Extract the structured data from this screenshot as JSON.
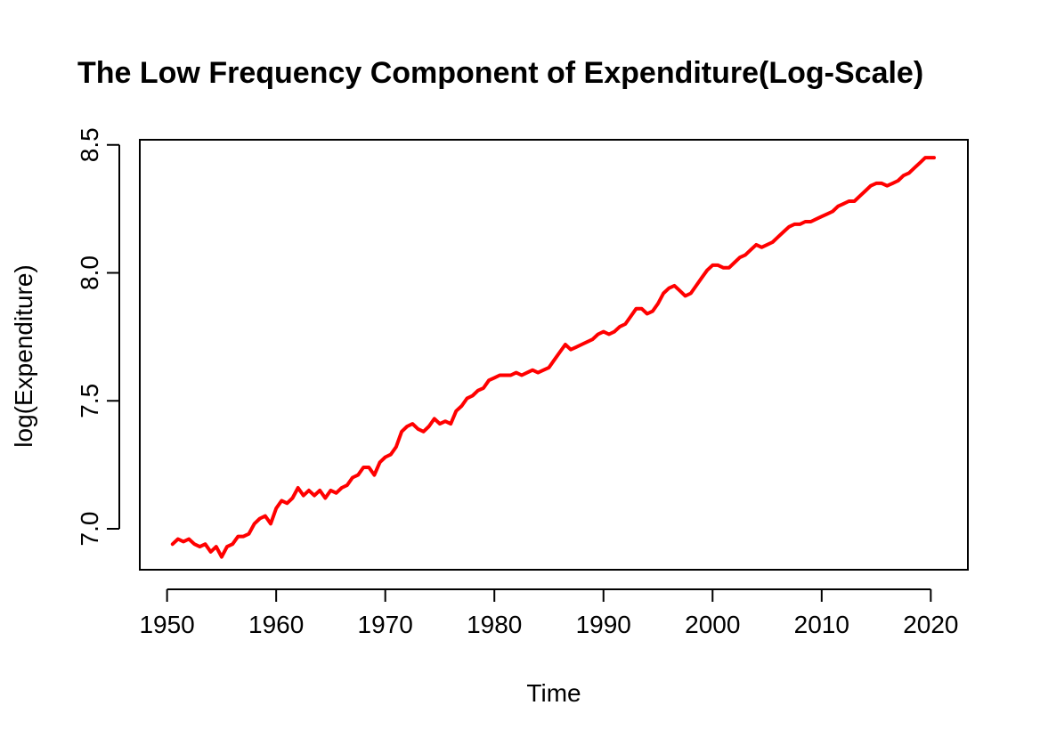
{
  "chart_data": {
    "type": "line",
    "title": "The Low Frequency Component of Expenditure(Log-Scale)",
    "xlabel": "Time",
    "ylabel": "log(Expenditure)",
    "xlim": [
      1947.5,
      2023.4
    ],
    "ylim": [
      6.84,
      8.52
    ],
    "x_ticks": [
      1950,
      1960,
      1970,
      1980,
      1990,
      2000,
      2010,
      2020
    ],
    "y_ticks": [
      7.0,
      7.5,
      8.0,
      8.5
    ],
    "x_tick_labels": [
      "1950",
      "1960",
      "1970",
      "1980",
      "1990",
      "2000",
      "2010",
      "2020"
    ],
    "y_tick_labels": [
      "7.0",
      "7.5",
      "8.0",
      "8.5"
    ],
    "grid": false,
    "legend": "none",
    "series": [
      {
        "color": "#ff0000",
        "x": [
          1950.5,
          1951.0,
          1951.5,
          1952.0,
          1952.5,
          1953.0,
          1953.5,
          1954.0,
          1954.5,
          1955.0,
          1955.5,
          1956.0,
          1956.5,
          1957.0,
          1957.5,
          1958.0,
          1958.5,
          1959.0,
          1959.5,
          1960.0,
          1960.5,
          1961.0,
          1961.5,
          1962.0,
          1962.5,
          1963.0,
          1963.5,
          1964.0,
          1964.5,
          1965.0,
          1965.5,
          1966.0,
          1966.5,
          1967.0,
          1967.5,
          1968.0,
          1968.5,
          1969.0,
          1969.5,
          1970.0,
          1970.5,
          1971.0,
          1971.5,
          1972.0,
          1972.5,
          1973.0,
          1973.5,
          1974.0,
          1974.5,
          1975.0,
          1975.5,
          1976.0,
          1976.5,
          1977.0,
          1977.5,
          1978.0,
          1978.5,
          1979.0,
          1979.5,
          1980.0,
          1980.5,
          1981.0,
          1981.5,
          1982.0,
          1982.5,
          1983.0,
          1983.5,
          1984.0,
          1984.5,
          1985.0,
          1985.5,
          1986.0,
          1986.5,
          1987.0,
          1987.5,
          1988.0,
          1988.5,
          1989.0,
          1989.5,
          1990.0,
          1990.5,
          1991.0,
          1991.5,
          1992.0,
          1992.5,
          1993.0,
          1993.5,
          1994.0,
          1994.5,
          1995.0,
          1995.5,
          1996.0,
          1996.5,
          1997.0,
          1997.5,
          1998.0,
          1998.5,
          1999.0,
          1999.5,
          2000.0,
          2000.5,
          2001.0,
          2001.5,
          2002.0,
          2002.5,
          2003.0,
          2003.5,
          2004.0,
          2004.5,
          2005.0,
          2005.5,
          2006.0,
          2006.5,
          2007.0,
          2007.5,
          2008.0,
          2008.5,
          2009.0,
          2009.5,
          2010.0,
          2010.5,
          2011.0,
          2011.5,
          2012.0,
          2012.5,
          2013.0,
          2013.5,
          2014.0,
          2014.5,
          2015.0,
          2015.5,
          2016.0,
          2016.5,
          2017.0,
          2017.5,
          2018.0,
          2018.5,
          2019.0,
          2019.5,
          2020.0,
          2020.3
        ],
        "values": [
          6.94,
          6.96,
          6.95,
          6.96,
          6.94,
          6.93,
          6.94,
          6.91,
          6.93,
          6.89,
          6.93,
          6.94,
          6.97,
          6.97,
          6.98,
          7.02,
          7.04,
          7.05,
          7.02,
          7.08,
          7.11,
          7.1,
          7.12,
          7.16,
          7.13,
          7.15,
          7.13,
          7.15,
          7.12,
          7.15,
          7.14,
          7.16,
          7.17,
          7.2,
          7.21,
          7.24,
          7.24,
          7.21,
          7.26,
          7.28,
          7.29,
          7.32,
          7.38,
          7.4,
          7.41,
          7.39,
          7.38,
          7.4,
          7.43,
          7.41,
          7.42,
          7.41,
          7.46,
          7.48,
          7.51,
          7.52,
          7.54,
          7.55,
          7.58,
          7.59,
          7.6,
          7.6,
          7.6,
          7.61,
          7.6,
          7.61,
          7.62,
          7.61,
          7.62,
          7.63,
          7.66,
          7.69,
          7.72,
          7.7,
          7.71,
          7.72,
          7.73,
          7.74,
          7.76,
          7.77,
          7.76,
          7.77,
          7.79,
          7.8,
          7.83,
          7.86,
          7.86,
          7.84,
          7.85,
          7.88,
          7.92,
          7.94,
          7.95,
          7.93,
          7.91,
          7.92,
          7.95,
          7.98,
          8.01,
          8.03,
          8.03,
          8.02,
          8.02,
          8.04,
          8.06,
          8.07,
          8.09,
          8.11,
          8.1,
          8.11,
          8.12,
          8.14,
          8.16,
          8.18,
          8.19,
          8.19,
          8.2,
          8.2,
          8.21,
          8.22,
          8.23,
          8.24,
          8.26,
          8.27,
          8.28,
          8.28,
          8.3,
          8.32,
          8.34,
          8.35,
          8.35,
          8.34,
          8.35,
          8.36,
          8.38,
          8.39,
          8.41,
          8.43,
          8.45,
          8.45,
          8.45
        ]
      }
    ]
  }
}
